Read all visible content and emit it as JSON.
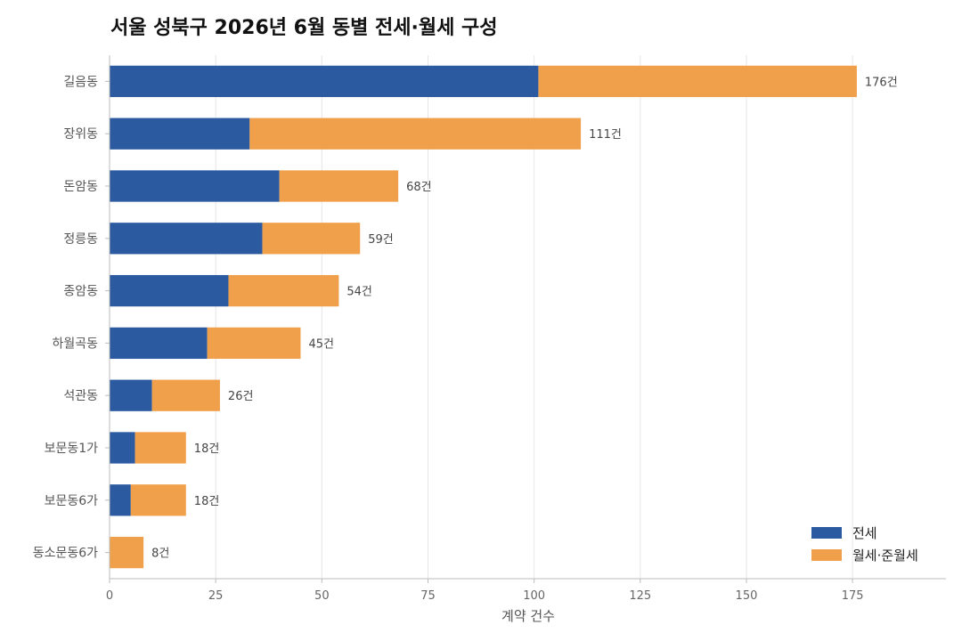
{
  "chart_data": {
    "type": "bar",
    "orientation": "horizontal",
    "stacked": true,
    "title": "서울 성북구 2026년 6월 동별 전세·월세 구성",
    "xlabel": "계약 건수",
    "ylabel": "",
    "xlim": [
      0,
      197
    ],
    "xticks": [
      0,
      25,
      50,
      75,
      100,
      125,
      150,
      175
    ],
    "grid": true,
    "legend_position": "bottom-right",
    "total_suffix": "건",
    "categories": [
      "길음동",
      "장위동",
      "돈암동",
      "정릉동",
      "종암동",
      "하월곡동",
      "석관동",
      "보문동1가",
      "보문동6가",
      "동소문동6가"
    ],
    "series": [
      {
        "name": "전세",
        "color": "#2b5aa0",
        "values": [
          101,
          33,
          40,
          36,
          28,
          23,
          10,
          6,
          5,
          0
        ]
      },
      {
        "name": "월세·준월세",
        "color": "#f0a04b",
        "values": [
          75,
          78,
          28,
          23,
          26,
          22,
          16,
          12,
          13,
          8
        ]
      }
    ],
    "totals": [
      176,
      111,
      68,
      59,
      54,
      45,
      26,
      18,
      18,
      8
    ]
  }
}
